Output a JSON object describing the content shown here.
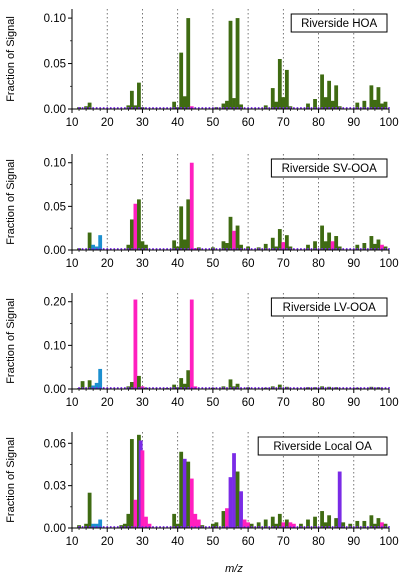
{
  "x_axis_label": "m/z",
  "y_axis_label": "Fraction of Signal",
  "colors": {
    "organic": "#3f6b12",
    "oxygenated": "#ff1fbf",
    "water": "#1c8fcf",
    "nitrogen": "#7a2be6",
    "axis": "#000000",
    "grid": "#555555"
  },
  "chart_data": [
    {
      "type": "bar",
      "title": "Riverside HOA",
      "xlim": [
        10,
        100
      ],
      "ylim": [
        0,
        0.11
      ],
      "xticks": [
        10,
        20,
        30,
        40,
        50,
        60,
        70,
        80,
        90,
        100
      ],
      "xtick_labels": [
        "10",
        "20",
        "30",
        "40",
        "50",
        "60",
        "70",
        "80",
        "90",
        "100"
      ],
      "yticks": [
        0,
        0.05,
        0.1
      ],
      "ytick_labels": [
        "0.00",
        "0.05",
        "0.10"
      ],
      "bars": [
        {
          "x": 12,
          "v": 0.002,
          "c": "organic"
        },
        {
          "x": 14,
          "v": 0.003,
          "c": "organic"
        },
        {
          "x": 15,
          "v": 0.007,
          "c": "organic"
        },
        {
          "x": 26,
          "v": 0.004,
          "c": "organic"
        },
        {
          "x": 27,
          "v": 0.02,
          "c": "organic"
        },
        {
          "x": 28,
          "v": 0.004,
          "c": "organic"
        },
        {
          "x": 29,
          "v": 0.029,
          "c": "organic"
        },
        {
          "x": 30,
          "v": 0.002,
          "c": "organic"
        },
        {
          "x": 39,
          "v": 0.008,
          "c": "organic"
        },
        {
          "x": 40,
          "v": 0.002,
          "c": "organic"
        },
        {
          "x": 41,
          "v": 0.062,
          "c": "organic"
        },
        {
          "x": 42,
          "v": 0.014,
          "c": "organic"
        },
        {
          "x": 43,
          "v": 0.1,
          "c": "organic"
        },
        {
          "x": 44,
          "v": 0.003,
          "c": "oxygenated"
        },
        {
          "x": 51,
          "v": 0.002,
          "c": "organic"
        },
        {
          "x": 53,
          "v": 0.006,
          "c": "organic"
        },
        {
          "x": 54,
          "v": 0.009,
          "c": "organic"
        },
        {
          "x": 55,
          "v": 0.097,
          "c": "organic"
        },
        {
          "x": 56,
          "v": 0.012,
          "c": "organic"
        },
        {
          "x": 57,
          "v": 0.1,
          "c": "organic"
        },
        {
          "x": 58,
          "v": 0.005,
          "c": "organic"
        },
        {
          "x": 65,
          "v": 0.004,
          "c": "organic"
        },
        {
          "x": 67,
          "v": 0.023,
          "c": "organic"
        },
        {
          "x": 68,
          "v": 0.008,
          "c": "organic"
        },
        {
          "x": 69,
          "v": 0.055,
          "c": "organic"
        },
        {
          "x": 70,
          "v": 0.013,
          "c": "organic"
        },
        {
          "x": 71,
          "v": 0.043,
          "c": "organic"
        },
        {
          "x": 72,
          "v": 0.003,
          "c": "organic"
        },
        {
          "x": 77,
          "v": 0.006,
          "c": "organic"
        },
        {
          "x": 79,
          "v": 0.011,
          "c": "organic"
        },
        {
          "x": 81,
          "v": 0.038,
          "c": "organic"
        },
        {
          "x": 82,
          "v": 0.013,
          "c": "organic"
        },
        {
          "x": 83,
          "v": 0.031,
          "c": "organic"
        },
        {
          "x": 84,
          "v": 0.009,
          "c": "organic"
        },
        {
          "x": 85,
          "v": 0.026,
          "c": "organic"
        },
        {
          "x": 86,
          "v": 0.003,
          "c": "organic"
        },
        {
          "x": 91,
          "v": 0.007,
          "c": "organic"
        },
        {
          "x": 93,
          "v": 0.009,
          "c": "organic"
        },
        {
          "x": 95,
          "v": 0.026,
          "c": "organic"
        },
        {
          "x": 96,
          "v": 0.01,
          "c": "organic"
        },
        {
          "x": 97,
          "v": 0.024,
          "c": "organic"
        },
        {
          "x": 98,
          "v": 0.006,
          "c": "organic"
        },
        {
          "x": 99,
          "v": 0.008,
          "c": "organic"
        }
      ]
    },
    {
      "type": "bar",
      "title": "Riverside SV-OOA",
      "xlim": [
        10,
        100
      ],
      "ylim": [
        0,
        0.11
      ],
      "xticks": [
        10,
        20,
        30,
        40,
        50,
        60,
        70,
        80,
        90,
        100
      ],
      "xtick_labels": [
        "10",
        "20",
        "30",
        "40",
        "50",
        "60",
        "70",
        "80",
        "90",
        "100"
      ],
      "yticks": [
        0,
        0.05,
        0.1
      ],
      "ytick_labels": [
        "0.00",
        "0.05",
        "0.10"
      ],
      "bars": [
        {
          "x": 12,
          "v": 0.002,
          "c": "organic"
        },
        {
          "x": 15,
          "v": 0.02,
          "c": "organic"
        },
        {
          "x": 16,
          "v": 0.006,
          "c": "water"
        },
        {
          "x": 17,
          "v": 0.004,
          "c": "water"
        },
        {
          "x": 18,
          "v": 0.017,
          "c": "water"
        },
        {
          "x": 26,
          "v": 0.006,
          "c": "organic"
        },
        {
          "x": 27,
          "v": 0.035,
          "c": "organic"
        },
        {
          "x": 28,
          "v": 0.053,
          "c": "oxygenated"
        },
        {
          "x": 29,
          "v": 0.058,
          "c": "organic"
        },
        {
          "x": 30,
          "v": 0.01,
          "c": "organic"
        },
        {
          "x": 31,
          "v": 0.006,
          "c": "organic"
        },
        {
          "x": 39,
          "v": 0.011,
          "c": "organic"
        },
        {
          "x": 40,
          "v": 0.004,
          "c": "organic"
        },
        {
          "x": 41,
          "v": 0.05,
          "c": "organic"
        },
        {
          "x": 42,
          "v": 0.012,
          "c": "organic"
        },
        {
          "x": 43,
          "v": 0.058,
          "c": "organic"
        },
        {
          "x": 44,
          "v": 0.1,
          "c": "oxygenated"
        },
        {
          "x": 45,
          "v": 0.002,
          "c": "oxygenated"
        },
        {
          "x": 46,
          "v": 0.003,
          "c": "organic"
        },
        {
          "x": 50,
          "v": 0.003,
          "c": "organic"
        },
        {
          "x": 53,
          "v": 0.01,
          "c": "organic"
        },
        {
          "x": 54,
          "v": 0.008,
          "c": "organic"
        },
        {
          "x": 55,
          "v": 0.038,
          "c": "organic"
        },
        {
          "x": 56,
          "v": 0.022,
          "c": "oxygenated"
        },
        {
          "x": 57,
          "v": 0.028,
          "c": "organic"
        },
        {
          "x": 58,
          "v": 0.006,
          "c": "organic"
        },
        {
          "x": 60,
          "v": 0.004,
          "c": "organic"
        },
        {
          "x": 63,
          "v": 0.003,
          "c": "organic"
        },
        {
          "x": 65,
          "v": 0.007,
          "c": "organic"
        },
        {
          "x": 67,
          "v": 0.014,
          "c": "organic"
        },
        {
          "x": 68,
          "v": 0.004,
          "c": "organic"
        },
        {
          "x": 69,
          "v": 0.024,
          "c": "organic"
        },
        {
          "x": 70,
          "v": 0.009,
          "c": "oxygenated"
        },
        {
          "x": 71,
          "v": 0.017,
          "c": "organic"
        },
        {
          "x": 72,
          "v": 0.004,
          "c": "organic"
        },
        {
          "x": 77,
          "v": 0.006,
          "c": "organic"
        },
        {
          "x": 79,
          "v": 0.01,
          "c": "organic"
        },
        {
          "x": 81,
          "v": 0.028,
          "c": "organic"
        },
        {
          "x": 82,
          "v": 0.01,
          "c": "organic"
        },
        {
          "x": 83,
          "v": 0.02,
          "c": "organic"
        },
        {
          "x": 84,
          "v": 0.01,
          "c": "oxygenated"
        },
        {
          "x": 85,
          "v": 0.016,
          "c": "organic"
        },
        {
          "x": 86,
          "v": 0.004,
          "c": "organic"
        },
        {
          "x": 91,
          "v": 0.006,
          "c": "organic"
        },
        {
          "x": 93,
          "v": 0.008,
          "c": "organic"
        },
        {
          "x": 95,
          "v": 0.016,
          "c": "organic"
        },
        {
          "x": 96,
          "v": 0.007,
          "c": "organic"
        },
        {
          "x": 97,
          "v": 0.012,
          "c": "organic"
        },
        {
          "x": 98,
          "v": 0.006,
          "c": "oxygenated"
        },
        {
          "x": 99,
          "v": 0.004,
          "c": "organic"
        }
      ]
    },
    {
      "type": "bar",
      "title": "Riverside LV-OOA",
      "xlim": [
        10,
        100
      ],
      "ylim": [
        0,
        0.22
      ],
      "xticks": [
        10,
        20,
        30,
        40,
        50,
        60,
        70,
        80,
        90,
        100
      ],
      "xtick_labels": [
        "10",
        "20",
        "30",
        "40",
        "50",
        "60",
        "70",
        "80",
        "90",
        "100"
      ],
      "yticks": [
        0,
        0.1,
        0.2
      ],
      "ytick_labels": [
        "0.00",
        "0.10",
        "0.20"
      ],
      "bars": [
        {
          "x": 12,
          "v": 0.002,
          "c": "organic"
        },
        {
          "x": 13,
          "v": 0.018,
          "c": "organic"
        },
        {
          "x": 15,
          "v": 0.02,
          "c": "organic"
        },
        {
          "x": 16,
          "v": 0.008,
          "c": "water"
        },
        {
          "x": 17,
          "v": 0.014,
          "c": "water"
        },
        {
          "x": 18,
          "v": 0.046,
          "c": "water"
        },
        {
          "x": 26,
          "v": 0.006,
          "c": "organic"
        },
        {
          "x": 27,
          "v": 0.016,
          "c": "organic"
        },
        {
          "x": 28,
          "v": 0.205,
          "c": "oxygenated"
        },
        {
          "x": 29,
          "v": 0.03,
          "c": "organic"
        },
        {
          "x": 30,
          "v": 0.006,
          "c": "oxygenated"
        },
        {
          "x": 31,
          "v": 0.003,
          "c": "organic"
        },
        {
          "x": 37,
          "v": 0.002,
          "c": "organic"
        },
        {
          "x": 39,
          "v": 0.01,
          "c": "organic"
        },
        {
          "x": 40,
          "v": 0.004,
          "c": "organic"
        },
        {
          "x": 41,
          "v": 0.025,
          "c": "organic"
        },
        {
          "x": 42,
          "v": 0.012,
          "c": "organic"
        },
        {
          "x": 43,
          "v": 0.043,
          "c": "organic"
        },
        {
          "x": 44,
          "v": 0.205,
          "c": "oxygenated"
        },
        {
          "x": 45,
          "v": 0.006,
          "c": "oxygenated"
        },
        {
          "x": 50,
          "v": 0.003,
          "c": "organic"
        },
        {
          "x": 53,
          "v": 0.006,
          "c": "organic"
        },
        {
          "x": 55,
          "v": 0.022,
          "c": "organic"
        },
        {
          "x": 56,
          "v": 0.006,
          "c": "organic"
        },
        {
          "x": 57,
          "v": 0.012,
          "c": "organic"
        },
        {
          "x": 60,
          "v": 0.004,
          "c": "organic"
        },
        {
          "x": 65,
          "v": 0.003,
          "c": "organic"
        },
        {
          "x": 67,
          "v": 0.006,
          "c": "organic"
        },
        {
          "x": 69,
          "v": 0.01,
          "c": "organic"
        },
        {
          "x": 71,
          "v": 0.005,
          "c": "organic"
        },
        {
          "x": 77,
          "v": 0.004,
          "c": "organic"
        },
        {
          "x": 79,
          "v": 0.004,
          "c": "organic"
        },
        {
          "x": 81,
          "v": 0.006,
          "c": "organic"
        },
        {
          "x": 83,
          "v": 0.005,
          "c": "organic"
        },
        {
          "x": 85,
          "v": 0.004,
          "c": "organic"
        },
        {
          "x": 91,
          "v": 0.003,
          "c": "organic"
        },
        {
          "x": 95,
          "v": 0.005,
          "c": "organic"
        },
        {
          "x": 97,
          "v": 0.004,
          "c": "organic"
        }
      ]
    },
    {
      "type": "bar",
      "title": "Riverside Local OA",
      "xlim": [
        10,
        100
      ],
      "ylim": [
        0,
        0.068
      ],
      "xticks": [
        10,
        20,
        30,
        40,
        50,
        60,
        70,
        80,
        90,
        100
      ],
      "xtick_labels": [
        "10",
        "20",
        "30",
        "40",
        "50",
        "60",
        "70",
        "80",
        "90",
        "100"
      ],
      "yticks": [
        0,
        0.03,
        0.06
      ],
      "ytick_labels": [
        "0.00",
        "0.03",
        "0.06"
      ],
      "bars": [
        {
          "x": 12,
          "v": 0.002,
          "c": "organic"
        },
        {
          "x": 14,
          "v": 0.003,
          "c": "organic"
        },
        {
          "x": 15,
          "v": 0.025,
          "c": "organic"
        },
        {
          "x": 16,
          "v": 0.003,
          "c": "water"
        },
        {
          "x": 17,
          "v": 0.003,
          "c": "water"
        },
        {
          "x": 18,
          "v": 0.006,
          "c": "water"
        },
        {
          "x": 24,
          "v": 0.002,
          "c": "organic"
        },
        {
          "x": 25,
          "v": 0.003,
          "c": "organic"
        },
        {
          "x": 26,
          "v": 0.01,
          "c": "organic"
        },
        {
          "x": 27,
          "v": 0.063,
          "c": "organic"
        },
        {
          "x": 28,
          "v": 0.02,
          "c": "oxygenated"
        },
        {
          "x": 29,
          "v": 0.066,
          "c": "organic"
        },
        {
          "x": 29.5,
          "v": 0.062,
          "c": "nitrogen"
        },
        {
          "x": 30,
          "v": 0.055,
          "c": "oxygenated"
        },
        {
          "x": 31,
          "v": 0.008,
          "c": "oxygenated"
        },
        {
          "x": 32,
          "v": 0.003,
          "c": "oxygenated"
        },
        {
          "x": 39,
          "v": 0.01,
          "c": "organic"
        },
        {
          "x": 40,
          "v": 0.003,
          "c": "organic"
        },
        {
          "x": 41,
          "v": 0.054,
          "c": "organic"
        },
        {
          "x": 42,
          "v": 0.049,
          "c": "nitrogen"
        },
        {
          "x": 43,
          "v": 0.047,
          "c": "organic"
        },
        {
          "x": 44,
          "v": 0.035,
          "c": "oxygenated"
        },
        {
          "x": 45,
          "v": 0.01,
          "c": "oxygenated"
        },
        {
          "x": 46,
          "v": 0.006,
          "c": "oxygenated"
        },
        {
          "x": 47,
          "v": 0.002,
          "c": "organic"
        },
        {
          "x": 50,
          "v": 0.003,
          "c": "organic"
        },
        {
          "x": 51,
          "v": 0.004,
          "c": "organic"
        },
        {
          "x": 53,
          "v": 0.012,
          "c": "organic"
        },
        {
          "x": 54,
          "v": 0.014,
          "c": "oxygenated"
        },
        {
          "x": 55,
          "v": 0.036,
          "c": "nitrogen"
        },
        {
          "x": 56,
          "v": 0.053,
          "c": "nitrogen"
        },
        {
          "x": 57,
          "v": 0.04,
          "c": "organic"
        },
        {
          "x": 58,
          "v": 0.026,
          "c": "nitrogen"
        },
        {
          "x": 59,
          "v": 0.006,
          "c": "oxygenated"
        },
        {
          "x": 60,
          "v": 0.004,
          "c": "oxygenated"
        },
        {
          "x": 61,
          "v": 0.003,
          "c": "organic"
        },
        {
          "x": 63,
          "v": 0.004,
          "c": "organic"
        },
        {
          "x": 65,
          "v": 0.006,
          "c": "organic"
        },
        {
          "x": 67,
          "v": 0.008,
          "c": "organic"
        },
        {
          "x": 68,
          "v": 0.003,
          "c": "organic"
        },
        {
          "x": 69,
          "v": 0.01,
          "c": "organic"
        },
        {
          "x": 70,
          "v": 0.004,
          "c": "oxygenated"
        },
        {
          "x": 71,
          "v": 0.006,
          "c": "organic"
        },
        {
          "x": 72,
          "v": 0.004,
          "c": "oxygenated"
        },
        {
          "x": 73,
          "v": 0.003,
          "c": "oxygenated"
        },
        {
          "x": 75,
          "v": 0.003,
          "c": "organic"
        },
        {
          "x": 77,
          "v": 0.006,
          "c": "organic"
        },
        {
          "x": 79,
          "v": 0.008,
          "c": "organic"
        },
        {
          "x": 81,
          "v": 0.012,
          "c": "organic"
        },
        {
          "x": 82,
          "v": 0.004,
          "c": "organic"
        },
        {
          "x": 83,
          "v": 0.009,
          "c": "organic"
        },
        {
          "x": 85,
          "v": 0.007,
          "c": "organic"
        },
        {
          "x": 86,
          "v": 0.04,
          "c": "nitrogen"
        },
        {
          "x": 87,
          "v": 0.004,
          "c": "organic"
        },
        {
          "x": 89,
          "v": 0.003,
          "c": "organic"
        },
        {
          "x": 91,
          "v": 0.005,
          "c": "organic"
        },
        {
          "x": 93,
          "v": 0.005,
          "c": "organic"
        },
        {
          "x": 95,
          "v": 0.009,
          "c": "organic"
        },
        {
          "x": 96,
          "v": 0.003,
          "c": "organic"
        },
        {
          "x": 97,
          "v": 0.007,
          "c": "organic"
        },
        {
          "x": 98,
          "v": 0.004,
          "c": "oxygenated"
        },
        {
          "x": 99,
          "v": 0.003,
          "c": "organic"
        }
      ]
    }
  ]
}
